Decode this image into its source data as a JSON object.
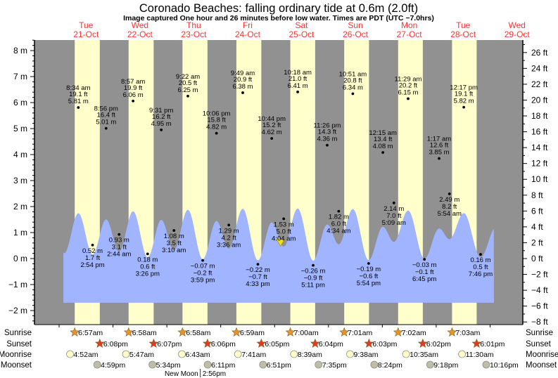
{
  "title": "Coronado Beaches: falling  ordinary tide at 0.6m (2.0ft)",
  "subtitle": "Image captured One hour and 26 minutes before low water. Times are PDT (UTC −7.0hrs)",
  "colors": {
    "night": "#919191",
    "day": "#ffffcc",
    "water": "#a0b4ff",
    "day_label": "#ff3333",
    "sunrise": "#e8922a",
    "sunset": "#e03a20",
    "moonrise": "#ffffcc",
    "moonset": "#bdbdaa",
    "current": "#f0e020"
  },
  "days": [
    {
      "dow": "Tue",
      "date": "21-Oct"
    },
    {
      "dow": "Wed",
      "date": "22-Oct"
    },
    {
      "dow": "Thu",
      "date": "23-Oct"
    },
    {
      "dow": "Fri",
      "date": "24-Oct"
    },
    {
      "dow": "Sat",
      "date": "25-Oct"
    },
    {
      "dow": "Sun",
      "date": "26-Oct"
    },
    {
      "dow": "Mon",
      "date": "27-Oct"
    },
    {
      "dow": "Tue",
      "date": "28-Oct"
    },
    {
      "dow": "Wed",
      "date": "29-Oct"
    }
  ],
  "chart_data": {
    "type": "line",
    "title": "Coronado Beaches: falling  ordinary tide at 0.6m (2.0ft)",
    "y_left": {
      "label": "m",
      "range": [
        -2.5,
        8.5
      ],
      "ticks": [
        "8 m",
        "7 m",
        "6 m",
        "5 m",
        "4 m",
        "3 m",
        "2 m",
        "1 m",
        "0 m",
        "−1 m",
        "−2 m"
      ],
      "tick_values": [
        8,
        7,
        6,
        5,
        4,
        3,
        2,
        1,
        0,
        -1,
        -2
      ]
    },
    "y_right": {
      "label": "ft",
      "ticks": [
        "26 ft",
        "24 ft",
        "22 ft",
        "20 ft",
        "18 ft",
        "16 ft",
        "14 ft",
        "12 ft",
        "10 ft",
        "8 ft",
        "6 ft",
        "4 ft",
        "2 ft",
        "0 ft",
        "−2 ft",
        "−4 ft",
        "−6 ft",
        "−8 ft"
      ],
      "tick_values": [
        26,
        24,
        22,
        20,
        18,
        16,
        14,
        12,
        10,
        8,
        6,
        4,
        2,
        0,
        -2,
        -4,
        -6,
        -8
      ]
    },
    "current": {
      "height_m": 0.6,
      "height_ft": 2.0,
      "state": "falling"
    },
    "tides": [
      {
        "type": "high",
        "day": 0,
        "time": "8:34 am",
        "ft": "19.1 ft",
        "m": "5.81 m",
        "h": 5.81
      },
      {
        "type": "low",
        "day": 0,
        "time": "2:54 pm",
        "ft": "1.7 ft",
        "m": "0.52 m",
        "h": 0.52
      },
      {
        "type": "high",
        "day": 0,
        "time": "8:56 pm",
        "ft": "16.4 ft",
        "m": "5.01 m",
        "h": 5.01
      },
      {
        "type": "low",
        "day": 1,
        "time": "2:44 am",
        "ft": "3.1 ft",
        "m": "0.93 m",
        "h": 0.93
      },
      {
        "type": "high",
        "day": 1,
        "time": "8:57 am",
        "ft": "19.9 ft",
        "m": "6.06 m",
        "h": 6.06
      },
      {
        "type": "low",
        "day": 1,
        "time": "3:26 pm",
        "ft": "0.6 ft",
        "m": "0.18 m",
        "h": 0.18
      },
      {
        "type": "high",
        "day": 1,
        "time": "9:31 pm",
        "ft": "16.2 ft",
        "m": "4.95 m",
        "h": 4.95
      },
      {
        "type": "low",
        "day": 2,
        "time": "3:10 am",
        "ft": "3.5 ft",
        "m": "1.08 m",
        "h": 1.08
      },
      {
        "type": "high",
        "day": 2,
        "time": "9:22 am",
        "ft": "20.5 ft",
        "m": "6.25 m",
        "h": 6.25
      },
      {
        "type": "low",
        "day": 2,
        "time": "3:59 pm",
        "ft": "−0.2 ft",
        "m": "−0.07 m",
        "h": -0.07
      },
      {
        "type": "high",
        "day": 2,
        "time": "10:06 pm",
        "ft": "15.8 ft",
        "m": "4.82 m",
        "h": 4.82
      },
      {
        "type": "low",
        "day": 3,
        "time": "3:36 am",
        "ft": "4.2 ft",
        "m": "1.29 m",
        "h": 1.29
      },
      {
        "type": "high",
        "day": 3,
        "time": "9:49 am",
        "ft": "20.9 ft",
        "m": "6.38 m",
        "h": 6.38
      },
      {
        "type": "low",
        "day": 3,
        "time": "4:33 pm",
        "ft": "−0.7 ft",
        "m": "−0.22 m",
        "h": -0.22
      },
      {
        "type": "high",
        "day": 3,
        "time": "10:44 pm",
        "ft": "15.2 ft",
        "m": "4.62 m",
        "h": 4.62
      },
      {
        "type": "low",
        "day": 4,
        "time": "4:04 am",
        "ft": "5.0 ft",
        "m": "1.53 m",
        "h": 1.53
      },
      {
        "type": "high",
        "day": 4,
        "time": "10:18 am",
        "ft": "21.0 ft",
        "m": "6.41 m",
        "h": 6.41
      },
      {
        "type": "low",
        "day": 4,
        "time": "5:11 pm",
        "ft": "−0.9 ft",
        "m": "−0.26 m",
        "h": -0.26
      },
      {
        "type": "high",
        "day": 4,
        "time": "11:26 pm",
        "ft": "14.3 ft",
        "m": "4.36 m",
        "h": 4.36
      },
      {
        "type": "low",
        "day": 5,
        "time": "4:34 am",
        "ft": "6.0 ft",
        "m": "1.82 m",
        "h": 1.82
      },
      {
        "type": "high",
        "day": 5,
        "time": "10:51 am",
        "ft": "20.8 ft",
        "m": "6.34 m",
        "h": 6.34
      },
      {
        "type": "low",
        "day": 5,
        "time": "5:54 pm",
        "ft": "−0.6 ft",
        "m": "−0.19 m",
        "h": -0.19
      },
      {
        "type": "high",
        "day": 6,
        "time": "12:15 am",
        "ft": "13.4 ft",
        "m": "4.08 m",
        "h": 4.08
      },
      {
        "type": "low",
        "day": 6,
        "time": "5:09 am",
        "ft": "7.0 ft",
        "m": "2.14 m",
        "h": 2.14
      },
      {
        "type": "high",
        "day": 6,
        "time": "11:29 am",
        "ft": "20.2 ft",
        "m": "6.15 m",
        "h": 6.15
      },
      {
        "type": "low",
        "day": 6,
        "time": "6:45 pm",
        "ft": "−0.1 ft",
        "m": "−0.03 m",
        "h": -0.03
      },
      {
        "type": "high",
        "day": 7,
        "time": "1:17 am",
        "ft": "12.6 ft",
        "m": "3.85 m",
        "h": 3.85
      },
      {
        "type": "low",
        "day": 7,
        "time": "5:54 am",
        "ft": "8.2 ft",
        "m": "2.49 m",
        "h": 2.49
      },
      {
        "type": "high",
        "day": 7,
        "time": "12:17 pm",
        "ft": "19.1 ft",
        "m": "5.82 m",
        "h": 5.82
      },
      {
        "type": "low",
        "day": 7,
        "time": "7:46 pm",
        "ft": "0.5 ft",
        "m": "0.16 m",
        "h": 0.16
      }
    ]
  },
  "astro": {
    "row_labels": {
      "sunrise": "Sunrise",
      "sunset": "Sunset",
      "moonrise": "Moonrise",
      "moonset": "Moonset"
    },
    "sunrise": [
      "6:57am",
      "6:58am",
      "6:58am",
      "6:59am",
      "7:00am",
      "7:01am",
      "7:02am",
      "7:03am"
    ],
    "sunset": [
      "6:08pm",
      "6:07pm",
      "6:06pm",
      "6:05pm",
      "6:04pm",
      "6:03pm",
      "6:02pm",
      "6:01pm"
    ],
    "moonrise": [
      "4:52am",
      "5:47am",
      "6:43am",
      "7:41am",
      "8:39am",
      "9:38am",
      "10:35am",
      "11:30am"
    ],
    "moonset": [
      "4:59pm",
      "5:34pm",
      "6:11pm",
      "6:51pm",
      "7:35pm",
      "8:24pm",
      "9:18pm",
      "10:16pm"
    ],
    "moon_phase": {
      "label": "New Moon",
      "day": 2,
      "time": "2:56pm"
    }
  }
}
